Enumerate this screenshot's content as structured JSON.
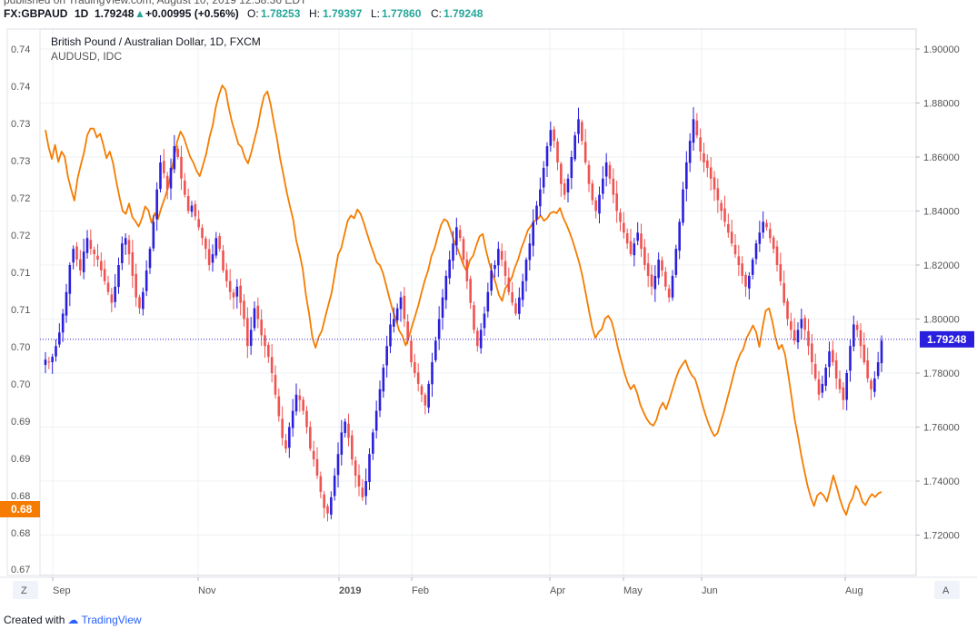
{
  "header": {
    "published": "published on TradingView.com, August 10, 2019 12:58:36 EDT",
    "ticker": "FX:GBPAUD",
    "timeframe": "1D",
    "last": "1.79248",
    "change": "+0.00995 (+0.56%)",
    "o_label": "O:",
    "o_value": "1.78253",
    "h_label": "H:",
    "h_value": "1.79397",
    "l_label": "L:",
    "l_value": "1.77860",
    "c_label": "C:",
    "c_value": "1.79248"
  },
  "legend": {
    "main": "British Pound / Australian Dollar, 1D, FXCM",
    "overlay": "AUDUSD, IDC"
  },
  "footer": {
    "prefix": "Created with",
    "brand": "TradingView"
  },
  "buttons": {
    "left": "Z",
    "right": "A"
  },
  "chart_data": {
    "type": "line",
    "right_axis_labels": [
      "1.90000",
      "1.88000",
      "1.86000",
      "1.84000",
      "1.82000",
      "1.80000",
      "1.78000",
      "1.76000",
      "1.74000",
      "1.72000"
    ],
    "left_axis_labels": [
      "0.74",
      "0.74",
      "0.73",
      "0.73",
      "0.72",
      "0.72",
      "0.71",
      "0.71",
      "0.70",
      "0.70",
      "0.69",
      "0.69",
      "0.68",
      "0.68",
      "0.67"
    ],
    "x_labels": [
      "Sep",
      "Nov",
      "2019",
      "Feb",
      "Apr",
      "May",
      "Jun",
      "Aug"
    ],
    "current_price_label": "1.79248",
    "current_overlay_label": "0.68",
    "colors": {
      "up": "#2a1fdc",
      "down": "#ef5350",
      "overlay": "#f57c00",
      "price_line": "#2a1fdc"
    },
    "grid": true,
    "series": [
      {
        "name": "British Pound / Australian Dollar, 1D, FXCM",
        "type": "candlestick",
        "closes": [
          1.785,
          1.784,
          1.786,
          1.79,
          1.795,
          1.802,
          1.81,
          1.82,
          1.826,
          1.822,
          1.818,
          1.825,
          1.83,
          1.826,
          1.824,
          1.822,
          1.818,
          1.814,
          1.81,
          1.806,
          1.812,
          1.82,
          1.828,
          1.83,
          1.824,
          1.816,
          1.808,
          1.804,
          1.81,
          1.818,
          1.826,
          1.836,
          1.848,
          1.858,
          1.854,
          1.848,
          1.856,
          1.864,
          1.86,
          1.852,
          1.846,
          1.84,
          1.842,
          1.838,
          1.834,
          1.83,
          1.826,
          1.82,
          1.824,
          1.83,
          1.826,
          1.818,
          1.814,
          1.81,
          1.808,
          1.812,
          1.806,
          1.8,
          1.79,
          1.796,
          1.804,
          1.8,
          1.794,
          1.79,
          1.786,
          1.78,
          1.772,
          1.764,
          1.756,
          1.752,
          1.76,
          1.766,
          1.772,
          1.77,
          1.766,
          1.76,
          1.752,
          1.748,
          1.742,
          1.736,
          1.73,
          1.728,
          1.734,
          1.742,
          1.75,
          1.758,
          1.762,
          1.756,
          1.748,
          1.742,
          1.738,
          1.734,
          1.74,
          1.75,
          1.758,
          1.766,
          1.774,
          1.782,
          1.79,
          1.798,
          1.8,
          1.804,
          1.808,
          1.8,
          1.792,
          1.784,
          1.78,
          1.776,
          1.772,
          1.768,
          1.776,
          1.784,
          1.792,
          1.8,
          1.808,
          1.816,
          1.822,
          1.828,
          1.834,
          1.83,
          1.822,
          1.814,
          1.806,
          1.796,
          1.79,
          1.796,
          1.802,
          1.81,
          1.818,
          1.82,
          1.826,
          1.822,
          1.816,
          1.81,
          1.806,
          1.802,
          1.808,
          1.814,
          1.822,
          1.828,
          1.836,
          1.842,
          1.848,
          1.856,
          1.864,
          1.87,
          1.866,
          1.858,
          1.85,
          1.846,
          1.852,
          1.86,
          1.868,
          1.874,
          1.866,
          1.858,
          1.85,
          1.844,
          1.84,
          1.846,
          1.852,
          1.858,
          1.852,
          1.846,
          1.84,
          1.836,
          1.832,
          1.828,
          1.824,
          1.828,
          1.832,
          1.826,
          1.82,
          1.816,
          1.812,
          1.816,
          1.822,
          1.818,
          1.812,
          1.808,
          1.816,
          1.826,
          1.836,
          1.848,
          1.858,
          1.866,
          1.874,
          1.868,
          1.862,
          1.858,
          1.856,
          1.852,
          1.848,
          1.844,
          1.84,
          1.836,
          1.832,
          1.828,
          1.824,
          1.82,
          1.816,
          1.812,
          1.816,
          1.822,
          1.828,
          1.832,
          1.836,
          1.834,
          1.83,
          1.826,
          1.82,
          1.814,
          1.806,
          1.8,
          1.796,
          1.792,
          1.796,
          1.8,
          1.796,
          1.79,
          1.784,
          1.778,
          1.772,
          1.776,
          1.782,
          1.788,
          1.784,
          1.778,
          1.774,
          1.77,
          1.78,
          1.79,
          1.798,
          1.796,
          1.79,
          1.784,
          1.778,
          1.774,
          1.778,
          1.784,
          1.792
        ]
      },
      {
        "name": "AUDUSD, IDC",
        "type": "line",
        "values": [
          0.7291,
          0.7268,
          0.7252,
          0.7271,
          0.7248,
          0.7262,
          0.7255,
          0.7228,
          0.7211,
          0.7196,
          0.7226,
          0.7244,
          0.7261,
          0.7284,
          0.7293,
          0.7293,
          0.7281,
          0.7286,
          0.7271,
          0.7253,
          0.7262,
          0.7247,
          0.7223,
          0.7201,
          0.7182,
          0.7178,
          0.7192,
          0.7174,
          0.7168,
          0.7161,
          0.7172,
          0.7188,
          0.7183,
          0.7166,
          0.7179,
          0.7171,
          0.7186,
          0.7198,
          0.7212,
          0.7231,
          0.7254,
          0.7276,
          0.7289,
          0.7281,
          0.7268,
          0.7255,
          0.7247,
          0.7236,
          0.7229,
          0.7244,
          0.7259,
          0.7281,
          0.7297,
          0.7322,
          0.7339,
          0.7351,
          0.7345,
          0.7321,
          0.7302,
          0.7287,
          0.7272,
          0.7268,
          0.7254,
          0.7246,
          0.7261,
          0.7278,
          0.7295,
          0.7319,
          0.7337,
          0.7343,
          0.7326,
          0.7302,
          0.7279,
          0.7252,
          0.7231,
          0.7208,
          0.7189,
          0.7171,
          0.7142,
          0.7125,
          0.7104,
          0.7069,
          0.7043,
          0.7012,
          0.6998,
          0.7013,
          0.7021,
          0.7039,
          0.7056,
          0.7072,
          0.7098,
          0.7123,
          0.7132,
          0.7151,
          0.7169,
          0.7176,
          0.7172,
          0.7184,
          0.7178,
          0.7166,
          0.7152,
          0.7138,
          0.7126,
          0.7113,
          0.7109,
          0.7098,
          0.7081,
          0.7064,
          0.7048,
          0.7036,
          0.7021,
          0.7014,
          0.7001,
          0.7012,
          0.7027,
          0.7041,
          0.7056,
          0.7073,
          0.7089,
          0.7102,
          0.7121,
          0.7132,
          0.7148,
          0.7163,
          0.7171,
          0.7168,
          0.7156,
          0.7142,
          0.7133,
          0.7121,
          0.7109,
          0.7101,
          0.7116,
          0.7122,
          0.7136,
          0.7148,
          0.7151,
          0.7129,
          0.7112,
          0.7098,
          0.7085,
          0.7069,
          0.7061,
          0.7078,
          0.7084,
          0.7092,
          0.7106,
          0.7117,
          0.7132,
          0.7143,
          0.7156,
          0.7162,
          0.7168,
          0.7171,
          0.7176,
          0.7169,
          0.7172,
          0.7179,
          0.7181,
          0.7179,
          0.7186,
          0.7173,
          0.7164,
          0.7153,
          0.7141,
          0.7127,
          0.7112,
          0.7094,
          0.7071,
          0.7048,
          0.7026,
          0.7011,
          0.7019,
          0.7023,
          0.7037,
          0.7041,
          0.7034,
          0.7018,
          0.6998,
          0.6981,
          0.6965,
          0.6951,
          0.6942,
          0.6948,
          0.6937,
          0.6921,
          0.6911,
          0.6902,
          0.6896,
          0.6893,
          0.6901,
          0.6916,
          0.6924,
          0.6915,
          0.6928,
          0.6942,
          0.6956,
          0.6968,
          0.6975,
          0.6981,
          0.6969,
          0.6961,
          0.6956,
          0.6942,
          0.6926,
          0.6911,
          0.6898,
          0.6887,
          0.6879,
          0.6883,
          0.6898,
          0.6912,
          0.6929,
          0.6945,
          0.6962,
          0.6978,
          0.6989,
          0.6996,
          0.7011,
          0.7019,
          0.7028,
          0.7019,
          0.6999,
          0.7026,
          0.7048,
          0.7051,
          0.7034,
          0.7012,
          0.6996,
          0.7002,
          0.6989,
          0.6961,
          0.6932,
          0.6901,
          0.6879,
          0.6854,
          0.6832,
          0.6812,
          0.6796,
          0.6785,
          0.6799,
          0.6803,
          0.6799,
          0.6791,
          0.6808,
          0.6826,
          0.6811,
          0.6795,
          0.6782,
          0.6773,
          0.6788,
          0.6796,
          0.6812,
          0.6805,
          0.6791,
          0.6786,
          0.6795,
          0.6801,
          0.6797,
          0.6802,
          0.6804
        ]
      }
    ]
  }
}
